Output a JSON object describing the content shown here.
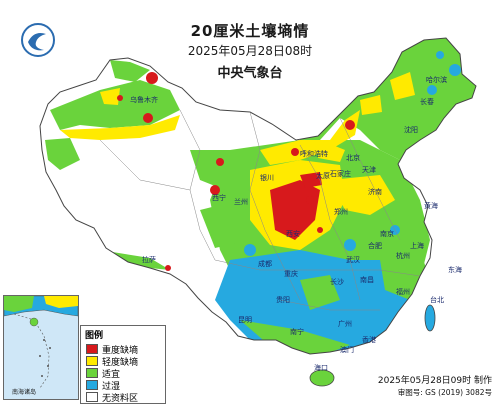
{
  "title": "20厘米土壤墒情",
  "subtitle": "2025年05月28日08时",
  "publisher": "中央气象台",
  "legend": {
    "title": "图例",
    "items": [
      {
        "label": "重度缺墒",
        "color": "#d7191c"
      },
      {
        "label": "轻度缺墒",
        "color": "#ffea00"
      },
      {
        "label": "适宜",
        "color": "#6ad33c"
      },
      {
        "label": "过湿",
        "color": "#26a9e0"
      },
      {
        "label": "无资料区",
        "color": "#ffffff"
      }
    ]
  },
  "inset_label": "南海诸岛",
  "footer": {
    "made": "2025年05月28日09时 制作",
    "approval": "审图号: GS (2019) 3082号"
  },
  "place_labels": {
    "beijing": "北京",
    "tianjin": "天津",
    "shanghai": "上海",
    "hongkong": "香港",
    "macau": "澳门",
    "taibei": "台北",
    "yellow_sea": "黄海",
    "east_sea": "东海",
    "hainan": "海口",
    "lhasa": "拉萨",
    "xian": "西安",
    "wuhan": "武汉",
    "chongqing": "重庆",
    "chengdu": "成都",
    "kunming": "昆明",
    "nanning": "南宁",
    "guangzhou": "广州",
    "fuzhou": "福州",
    "hangzhou": "杭州",
    "nanjing": "南京",
    "jinan": "济南",
    "shenyang": "沈阳",
    "haerbin": "哈尔滨",
    "huhehaote": "呼和浩特",
    "lanzhou": "兰州",
    "xining": "西宁",
    "yinchuan": "银川",
    "wulumuqi": "乌鲁木齐",
    "zhengzhou": "郑州",
    "taiyuan": "太原",
    "changsha": "长沙",
    "nanchang": "南昌",
    "guiyang": "贵阳",
    "hefei": "合肥",
    "changchun": "长春",
    "shijiazhuang": "石家庄"
  }
}
